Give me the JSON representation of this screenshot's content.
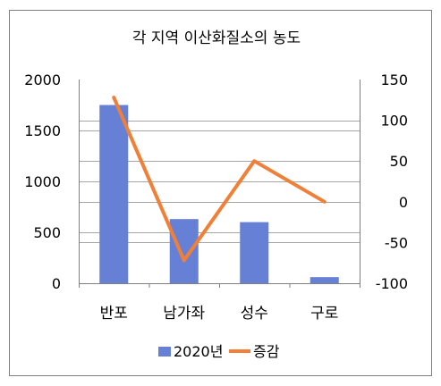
{
  "chart_data": {
    "type": "bar+line",
    "title": "각 지역 이산화질소의 농도",
    "categories": [
      "반포",
      "남가좌",
      "성수",
      "구로"
    ],
    "series": [
      {
        "name": "2020년",
        "type": "bar",
        "axis": "left",
        "color": "#6680d6",
        "values": [
          1750,
          630,
          600,
          60
        ]
      },
      {
        "name": "증감",
        "type": "line",
        "axis": "right",
        "color": "#f07f38",
        "values": [
          128,
          -72,
          50,
          0
        ]
      }
    ],
    "y_left": {
      "min": 0,
      "max": 2000,
      "ticks": [
        "0",
        "500",
        "1000",
        "1500",
        "2000"
      ]
    },
    "y_right": {
      "min": -100,
      "max": 150,
      "ticks": [
        "-100",
        "-50",
        "0",
        "50",
        "100",
        "150"
      ]
    },
    "grid": true,
    "legend": "bottom"
  }
}
